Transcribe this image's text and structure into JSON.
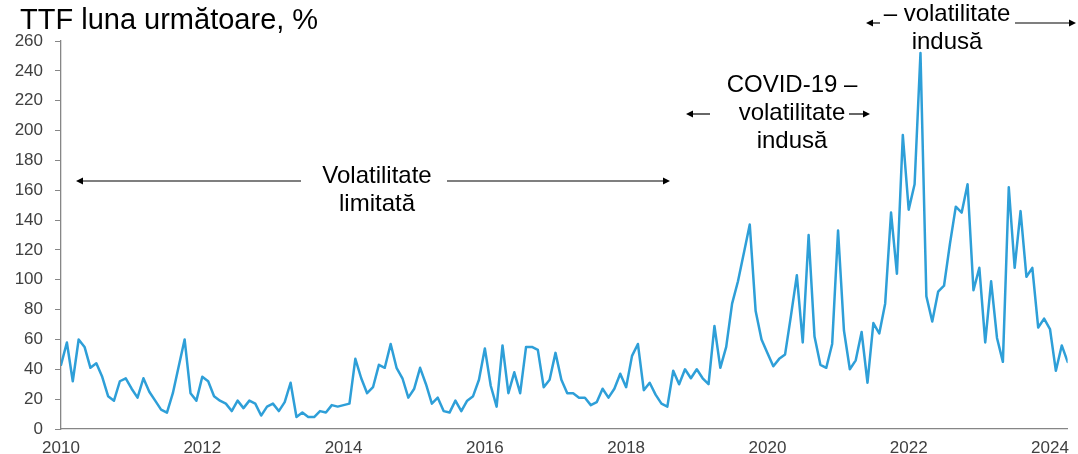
{
  "chart_data": {
    "type": "line",
    "title": "TTF luna următoare, %",
    "x": [
      "2010-01",
      "2010-02",
      "2010-03",
      "2010-04",
      "2010-05",
      "2010-06",
      "2010-07",
      "2010-08",
      "2010-09",
      "2010-10",
      "2010-11",
      "2010-12",
      "2011-01",
      "2011-02",
      "2011-03",
      "2011-04",
      "2011-05",
      "2011-06",
      "2011-07",
      "2011-08",
      "2011-09",
      "2011-10",
      "2011-11",
      "2011-12",
      "2012-01",
      "2012-02",
      "2012-03",
      "2012-04",
      "2012-05",
      "2012-06",
      "2012-07",
      "2012-08",
      "2012-09",
      "2012-10",
      "2012-11",
      "2012-12",
      "2013-01",
      "2013-02",
      "2013-03",
      "2013-04",
      "2013-05",
      "2013-06",
      "2013-07",
      "2013-08",
      "2013-09",
      "2013-10",
      "2013-11",
      "2013-12",
      "2014-01",
      "2014-02",
      "2014-03",
      "2014-04",
      "2014-05",
      "2014-06",
      "2014-07",
      "2014-08",
      "2014-09",
      "2014-10",
      "2014-11",
      "2014-12",
      "2015-01",
      "2015-02",
      "2015-03",
      "2015-04",
      "2015-05",
      "2015-06",
      "2015-07",
      "2015-08",
      "2015-09",
      "2015-10",
      "2015-11",
      "2015-12",
      "2016-01",
      "2016-02",
      "2016-03",
      "2016-04",
      "2016-05",
      "2016-06",
      "2016-07",
      "2016-08",
      "2016-09",
      "2016-10",
      "2016-11",
      "2016-12",
      "2017-01",
      "2017-02",
      "2017-03",
      "2017-04",
      "2017-05",
      "2017-06",
      "2017-07",
      "2017-08",
      "2017-09",
      "2017-10",
      "2017-11",
      "2017-12",
      "2018-01",
      "2018-02",
      "2018-03",
      "2018-04",
      "2018-05",
      "2018-06",
      "2018-07",
      "2018-08",
      "2018-09",
      "2018-10",
      "2018-11",
      "2018-12",
      "2019-01",
      "2019-02",
      "2019-03",
      "2019-04",
      "2019-05",
      "2019-06",
      "2019-07",
      "2019-08",
      "2019-09",
      "2019-10",
      "2019-11",
      "2019-12",
      "2020-01",
      "2020-02",
      "2020-03",
      "2020-04",
      "2020-05",
      "2020-06",
      "2020-07",
      "2020-08",
      "2020-09",
      "2020-10",
      "2020-11",
      "2020-12",
      "2021-01",
      "2021-02",
      "2021-03",
      "2021-04",
      "2021-05",
      "2021-06",
      "2021-07",
      "2021-08",
      "2021-09",
      "2021-10",
      "2021-11",
      "2021-12",
      "2022-01",
      "2022-02",
      "2022-03",
      "2022-04",
      "2022-05",
      "2022-06",
      "2022-07",
      "2022-08",
      "2022-09",
      "2022-10",
      "2022-11",
      "2022-12",
      "2023-01",
      "2023-02",
      "2023-03",
      "2023-04",
      "2023-05",
      "2023-06",
      "2023-07",
      "2023-08",
      "2023-09",
      "2023-10",
      "2023-11",
      "2023-12",
      "2024-01",
      "2024-02",
      "2024-03",
      "2024-04"
    ],
    "values": [
      43,
      58,
      32,
      60,
      55,
      41,
      44,
      35,
      22,
      19,
      32,
      34,
      27,
      21,
      34,
      25,
      19,
      13,
      11,
      24,
      42,
      60,
      24,
      19,
      35,
      32,
      22,
      19,
      17,
      12,
      19,
      14,
      19,
      17,
      9,
      15,
      17,
      12,
      18,
      31,
      8,
      11,
      8,
      8,
      12,
      11,
      16,
      15,
      16,
      17,
      47,
      34,
      24,
      28,
      43,
      41,
      57,
      41,
      34,
      21,
      27,
      41,
      30,
      17,
      21,
      12,
      11,
      19,
      12,
      19,
      22,
      33,
      54,
      29,
      15,
      56,
      24,
      38,
      24,
      55,
      55,
      53,
      28,
      33,
      51,
      33,
      24,
      24,
      21,
      21,
      16,
      18,
      27,
      21,
      27,
      37,
      28,
      49,
      57,
      26,
      31,
      23,
      17,
      15,
      39,
      30,
      40,
      34,
      40,
      34,
      30,
      69,
      41,
      55,
      84,
      99,
      118,
      137,
      79,
      60,
      51,
      42,
      47,
      50,
      76,
      103,
      58,
      130,
      62,
      43,
      41,
      57,
      133,
      66,
      40,
      46,
      65,
      31,
      71,
      64,
      84,
      145,
      104,
      197,
      147,
      164,
      252,
      89,
      72,
      92,
      96,
      124,
      149,
      145,
      164,
      93,
      108,
      58,
      99,
      61,
      45,
      162,
      108,
      146,
      102,
      108,
      68,
      74,
      67,
      39,
      56,
      45
    ],
    "color": "#2e9fd8",
    "xlim": [
      "2010-01",
      "2024-04"
    ],
    "xticks": [
      "2010",
      "2012",
      "2014",
      "2016",
      "2018",
      "2020",
      "2022",
      "2024"
    ],
    "ylim": [
      0,
      260
    ],
    "yticks": [
      0,
      20,
      40,
      60,
      80,
      100,
      120,
      140,
      160,
      180,
      200,
      220,
      240,
      260
    ],
    "grid": false,
    "annotations": [
      "Volatilitate limitată",
      "COVID-19 – volatilitate indusă",
      "– volatilitate indusă"
    ]
  }
}
